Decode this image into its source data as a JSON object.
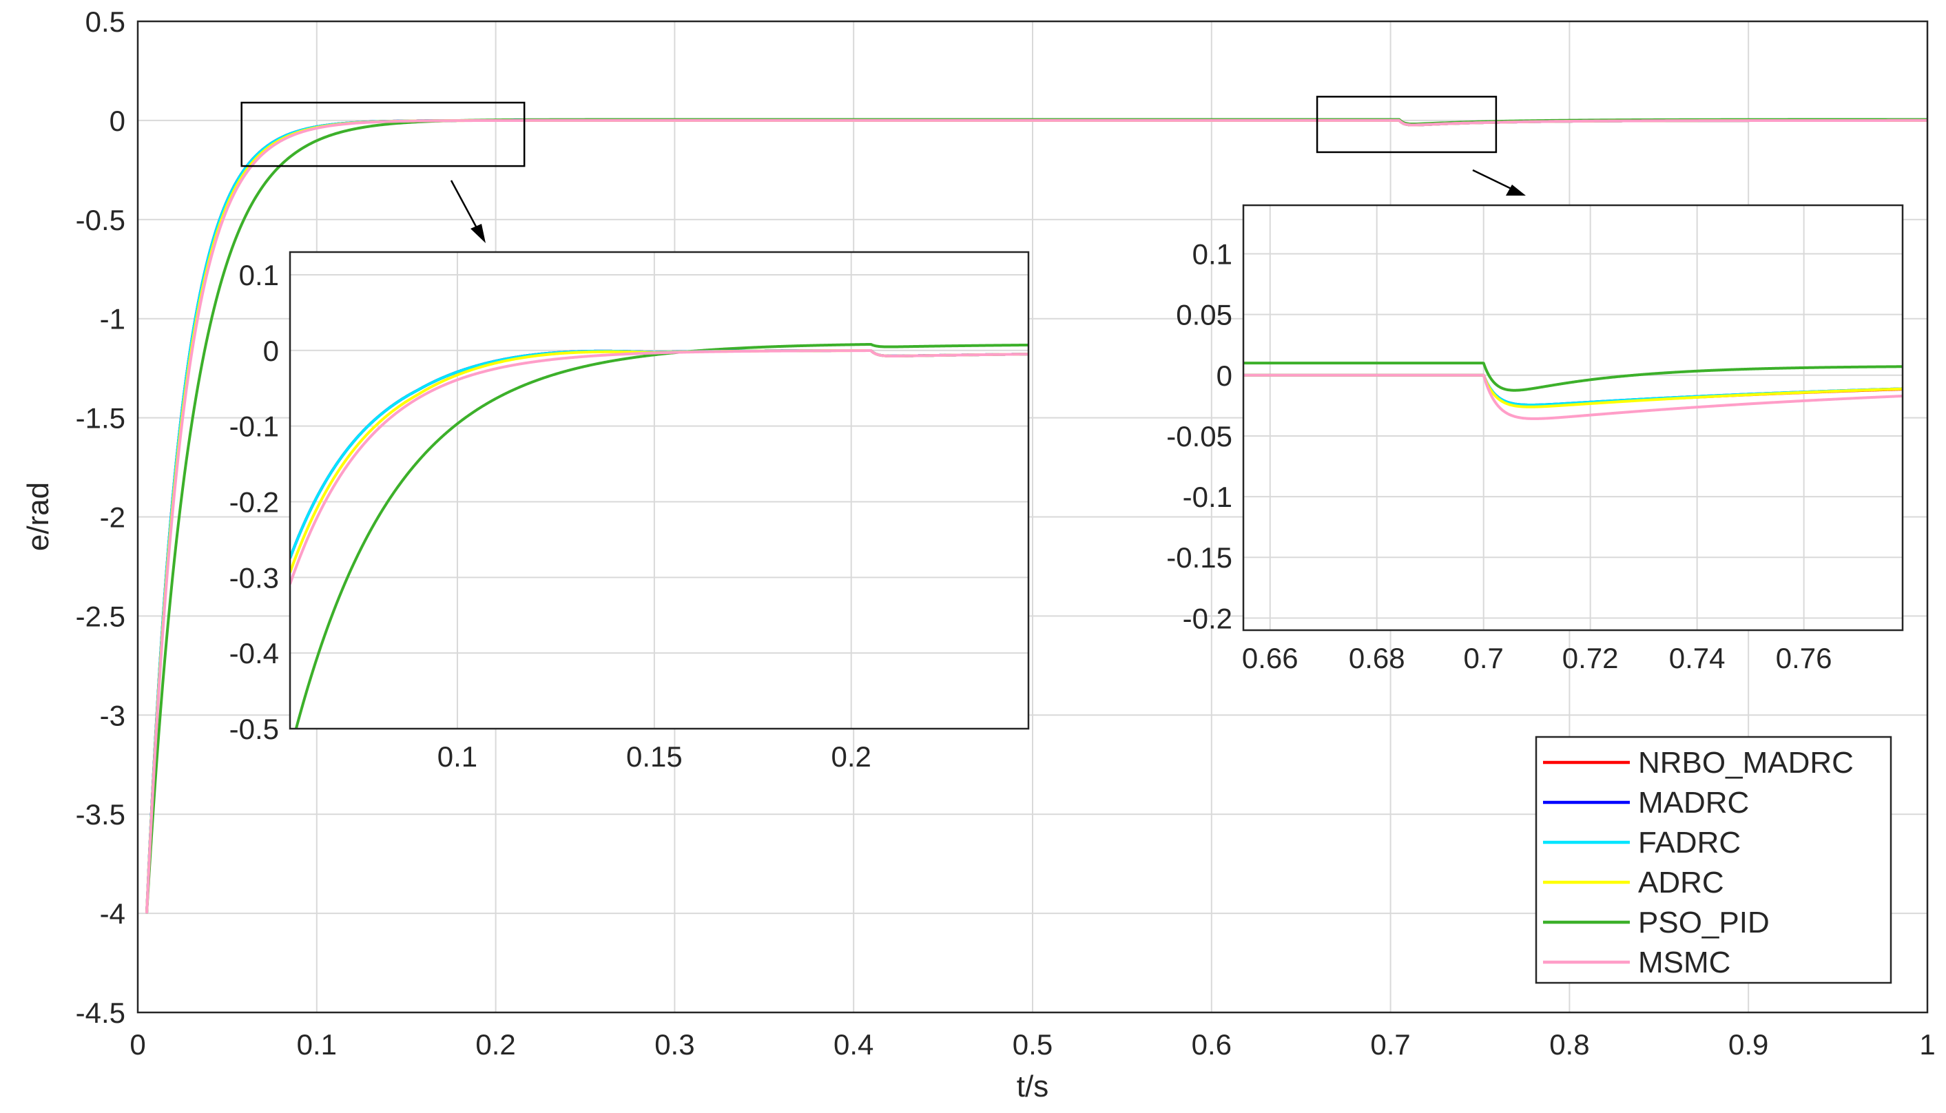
{
  "chart_data": {
    "type": "line",
    "xlabel": "t/s",
    "ylabel": "e/rad",
    "xlim": [
      0,
      1
    ],
    "ylim": [
      -4.5,
      0.5
    ],
    "xticks": [
      "0",
      "0.1",
      "0.2",
      "0.3",
      "0.4",
      "0.5",
      "0.6",
      "0.7",
      "0.8",
      "0.9",
      "1"
    ],
    "yticks": [
      "0.5",
      "0",
      "-0.5",
      "-1",
      "-1.5",
      "-2",
      "-2.5",
      "-3",
      "-3.5",
      "-4",
      "-4.5"
    ],
    "grid": true,
    "legend_position": "bottom-right",
    "series": [
      {
        "name": "NRBO_MADRC",
        "color": "#ff0000"
      },
      {
        "name": "MADRC",
        "color": "#0000ff"
      },
      {
        "name": "FADRC",
        "color": "#00e5ff"
      },
      {
        "name": "ADRC",
        "color": "#ffff00"
      },
      {
        "name": "PSO_PID",
        "color": "#3cb02a"
      },
      {
        "name": "MSMC",
        "color": "#ff9ec8"
      }
    ],
    "insets": [
      {
        "xlim": [
          0.0575,
          0.245
        ],
        "ylim": [
          -0.5,
          0.13
        ],
        "xticks": [
          "0.1",
          "0.15",
          "0.2"
        ],
        "yticks": [
          "0.1",
          "0",
          "-0.1",
          "-0.2",
          "-0.3",
          "-0.4",
          "-0.5"
        ],
        "source_box": {
          "x": [
            0.058,
            0.216
          ],
          "y": [
            -0.23,
            0.09
          ]
        }
      },
      {
        "xlim": [
          0.655,
          0.7785
        ],
        "ylim": [
          -0.21,
          0.14
        ],
        "xticks": [
          "0.66",
          "0.68",
          "0.7",
          "0.72",
          "0.74",
          "0.76"
        ],
        "yticks": [
          "0.1",
          "0.05",
          "0",
          "-0.05",
          "-0.1",
          "-0.15",
          "-0.2"
        ],
        "source_box": {
          "x": [
            0.659,
            0.759
          ],
          "y": [
            -0.16,
            0.12
          ]
        }
      }
    ]
  }
}
